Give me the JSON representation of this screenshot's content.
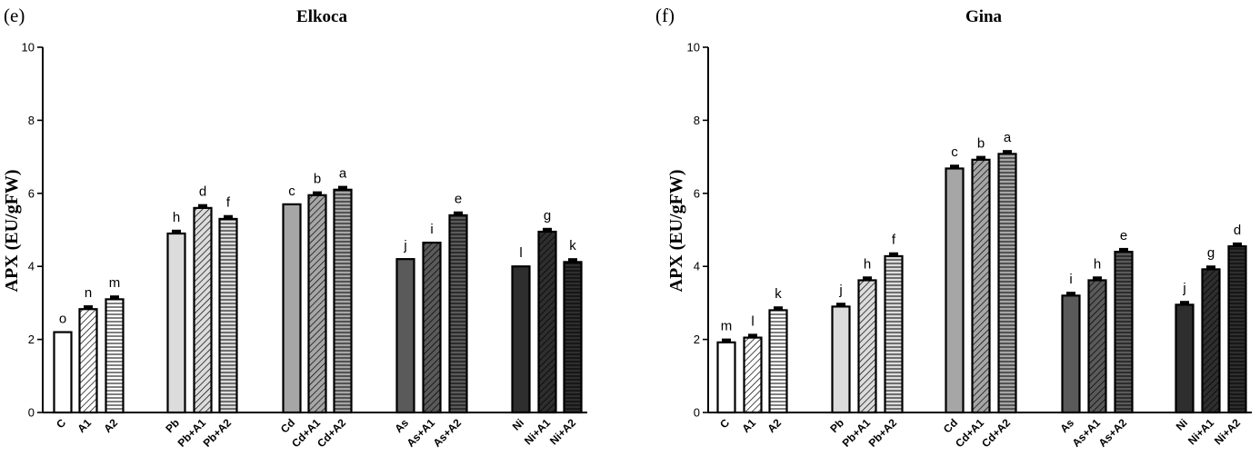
{
  "chart_data": [
    {
      "type": "bar",
      "panel": "(e)",
      "title": "Elkoca",
      "ylabel": "APX (EU/gFW)",
      "xlabel": "",
      "ylim": [
        0,
        10
      ],
      "yticks": [
        0,
        2,
        4,
        6,
        8,
        10
      ],
      "grid": false,
      "categories": [
        "C",
        "A1",
        "A2",
        "Pb",
        "Pb+A1",
        "Pb+A2",
        "Cd",
        "Cd+A1",
        "Cd+A2",
        "As",
        "As+A1",
        "As+A2",
        "Ni",
        "Ni+A1",
        "Ni+A2"
      ],
      "values": [
        2.2,
        2.83,
        3.1,
        4.9,
        5.6,
        5.3,
        5.7,
        5.95,
        6.1,
        4.2,
        4.65,
        5.4,
        4.0,
        4.95,
        4.12
      ],
      "errors": [
        0.0,
        0.08,
        0.08,
        0.08,
        0.08,
        0.08,
        0.0,
        0.08,
        0.08,
        0.0,
        0.0,
        0.08,
        0.0,
        0.08,
        0.08
      ],
      "letters": [
        "o",
        "n",
        "m",
        "h",
        "d",
        "f",
        "c",
        "b",
        "a",
        "j",
        "i",
        "e",
        "l",
        "g",
        "k"
      ]
    },
    {
      "type": "bar",
      "panel": "(f)",
      "title": "Gina",
      "ylabel": "APX (EU/gFW)",
      "xlabel": "",
      "ylim": [
        0,
        10
      ],
      "yticks": [
        0,
        2,
        4,
        6,
        8,
        10
      ],
      "grid": false,
      "categories": [
        "C",
        "A1",
        "A2",
        "Pb",
        "Pb+A1",
        "Pb+A2",
        "Cd",
        "Cd+A1",
        "Cd+A2",
        "As",
        "As+A1",
        "As+A2",
        "Ni",
        "Ni+A1",
        "Ni+A2"
      ],
      "values": [
        1.92,
        2.05,
        2.8,
        2.9,
        3.62,
        4.28,
        6.68,
        6.92,
        7.08,
        3.2,
        3.62,
        4.4,
        2.95,
        3.92,
        4.55
      ],
      "errors": [
        0.08,
        0.08,
        0.08,
        0.08,
        0.08,
        0.08,
        0.08,
        0.08,
        0.08,
        0.08,
        0.08,
        0.08,
        0.08,
        0.08,
        0.08
      ],
      "letters": [
        "m",
        "l",
        "k",
        "j",
        "h",
        "f",
        "c",
        "b",
        "a",
        "i",
        "h",
        "e",
        "j",
        "g",
        "d"
      ]
    }
  ],
  "bar_styles": [
    {
      "fill": "#ffffff",
      "pattern": "none"
    },
    {
      "fill": "#ffffff",
      "pattern": "diag"
    },
    {
      "fill": "#ffffff",
      "pattern": "horiz"
    },
    {
      "fill": "#dcdcdc",
      "pattern": "none"
    },
    {
      "fill": "#dcdcdc",
      "pattern": "diag"
    },
    {
      "fill": "#dcdcdc",
      "pattern": "horiz"
    },
    {
      "fill": "#a6a6a6",
      "pattern": "none"
    },
    {
      "fill": "#a6a6a6",
      "pattern": "diag"
    },
    {
      "fill": "#a6a6a6",
      "pattern": "horiz"
    },
    {
      "fill": "#5a5a5a",
      "pattern": "none"
    },
    {
      "fill": "#5a5a5a",
      "pattern": "diag"
    },
    {
      "fill": "#5a5a5a",
      "pattern": "horiz"
    },
    {
      "fill": "#2e2e2e",
      "pattern": "none"
    },
    {
      "fill": "#2e2e2e",
      "pattern": "diag"
    },
    {
      "fill": "#2e2e2e",
      "pattern": "horiz"
    }
  ]
}
